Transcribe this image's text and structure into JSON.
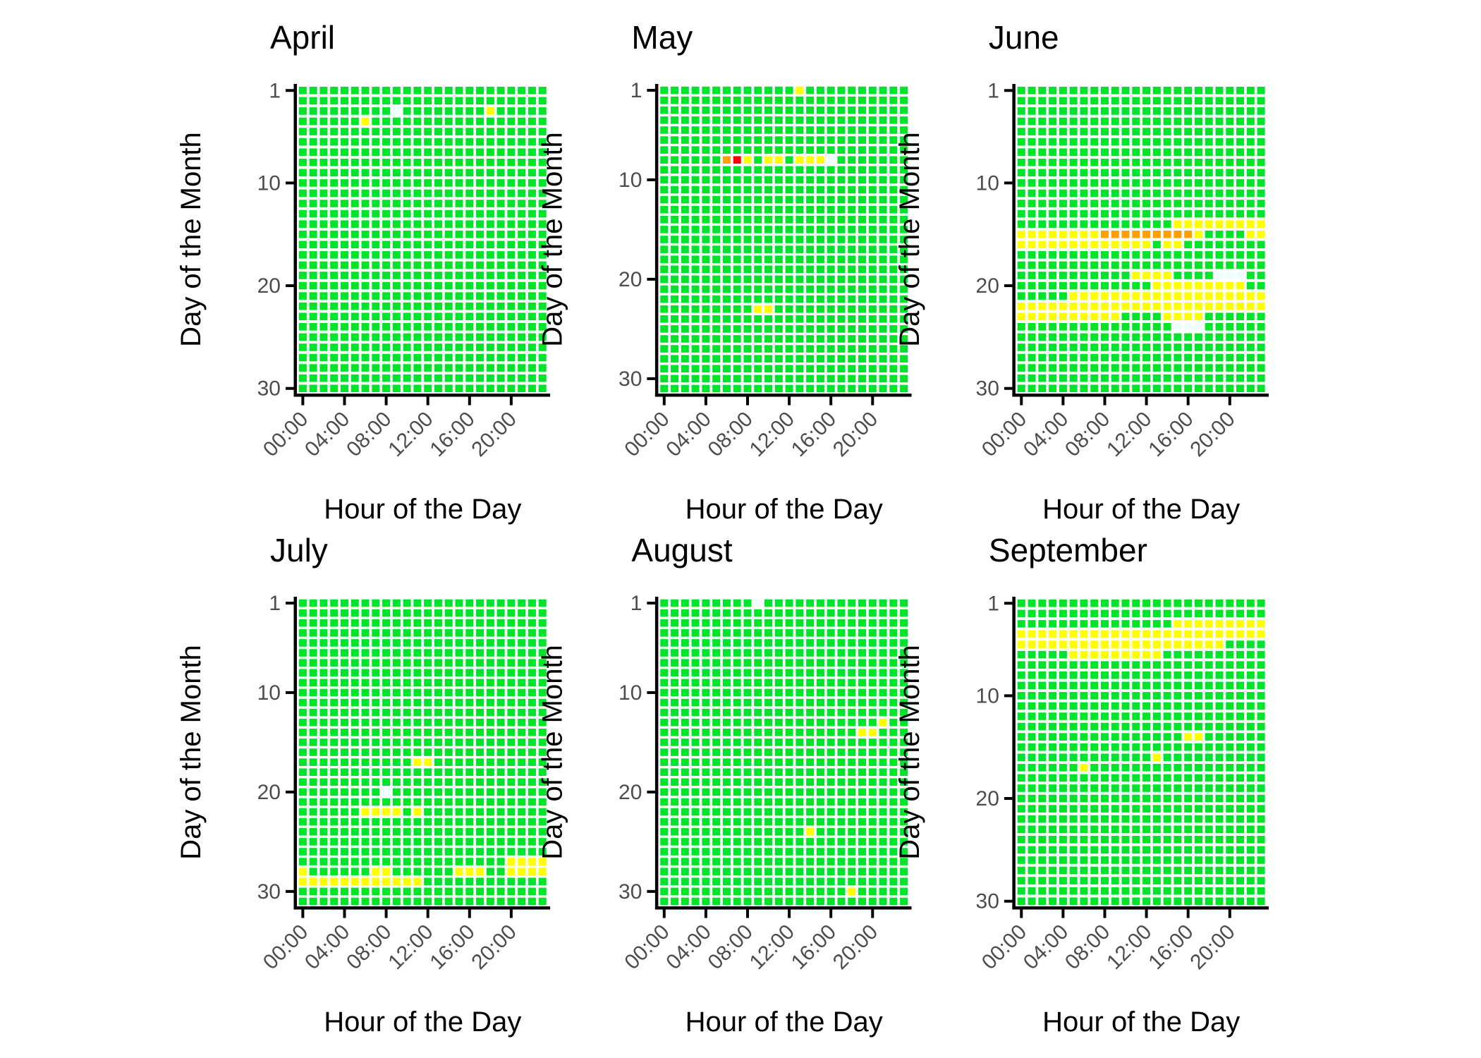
{
  "chart_data": {
    "type": "heatmap",
    "title": "",
    "xlabel": "Hour of the Day",
    "ylabel": "Day of the Month",
    "x_tick_labels": [
      "00:00",
      "04:00",
      "08:00",
      "12:00",
      "16:00",
      "20:00"
    ],
    "x_tick_hours": [
      0,
      4,
      8,
      12,
      16,
      20
    ],
    "y_tick_days": [
      1,
      10,
      20,
      30
    ],
    "hours_per_day": 24,
    "legend": "none",
    "grid": "off",
    "status_colors": {
      "good": "#00e42a",
      "mild": "#ffff00",
      "moderate": "#ffa000",
      "severe": "#ff0000",
      "missing": "#f0fdff"
    },
    "default_status": "good",
    "panels": [
      {
        "month": "April",
        "days": 30,
        "segments": [
          {
            "day": 3,
            "from": 9,
            "to": 9,
            "status": "missing"
          },
          {
            "day": 3,
            "from": 18,
            "to": 18,
            "status": "mild"
          },
          {
            "day": 4,
            "from": 6,
            "to": 6,
            "status": "mild"
          }
        ]
      },
      {
        "month": "May",
        "days": 31,
        "segments": [
          {
            "day": 1,
            "from": 13,
            "to": 13,
            "status": "mild"
          },
          {
            "day": 8,
            "from": 6,
            "to": 6,
            "status": "moderate"
          },
          {
            "day": 8,
            "from": 7,
            "to": 7,
            "status": "severe"
          },
          {
            "day": 8,
            "from": 8,
            "to": 8,
            "status": "mild"
          },
          {
            "day": 8,
            "from": 10,
            "to": 11,
            "status": "mild"
          },
          {
            "day": 8,
            "from": 13,
            "to": 15,
            "status": "mild"
          },
          {
            "day": 8,
            "from": 16,
            "to": 16,
            "status": "missing"
          },
          {
            "day": 23,
            "from": 9,
            "to": 10,
            "status": "mild"
          }
        ]
      },
      {
        "month": "June",
        "days": 30,
        "segments": [
          {
            "day": 14,
            "from": 15,
            "to": 23,
            "status": "mild"
          },
          {
            "day": 15,
            "from": 0,
            "to": 7,
            "status": "mild"
          },
          {
            "day": 15,
            "from": 8,
            "to": 16,
            "status": "moderate"
          },
          {
            "day": 15,
            "from": 17,
            "to": 17,
            "status": "mild"
          },
          {
            "day": 15,
            "from": 22,
            "to": 23,
            "status": "mild"
          },
          {
            "day": 16,
            "from": 0,
            "to": 12,
            "status": "mild"
          },
          {
            "day": 16,
            "from": 14,
            "to": 15,
            "status": "mild"
          },
          {
            "day": 19,
            "from": 11,
            "to": 14,
            "status": "mild"
          },
          {
            "day": 19,
            "from": 19,
            "to": 21,
            "status": "missing"
          },
          {
            "day": 20,
            "from": 13,
            "to": 21,
            "status": "mild"
          },
          {
            "day": 21,
            "from": 5,
            "to": 23,
            "status": "mild"
          },
          {
            "day": 22,
            "from": 0,
            "to": 23,
            "status": "mild"
          },
          {
            "day": 23,
            "from": 0,
            "to": 9,
            "status": "mild"
          },
          {
            "day": 23,
            "from": 14,
            "to": 17,
            "status": "mild"
          },
          {
            "day": 24,
            "from": 15,
            "to": 17,
            "status": "missing"
          }
        ]
      },
      {
        "month": "July",
        "days": 31,
        "segments": [
          {
            "day": 17,
            "from": 11,
            "to": 12,
            "status": "mild"
          },
          {
            "day": 20,
            "from": 8,
            "to": 8,
            "status": "missing"
          },
          {
            "day": 22,
            "from": 6,
            "to": 9,
            "status": "mild"
          },
          {
            "day": 22,
            "from": 11,
            "to": 11,
            "status": "mild"
          },
          {
            "day": 27,
            "from": 20,
            "to": 23,
            "status": "mild"
          },
          {
            "day": 28,
            "from": 0,
            "to": 0,
            "status": "mild"
          },
          {
            "day": 28,
            "from": 7,
            "to": 8,
            "status": "mild"
          },
          {
            "day": 28,
            "from": 15,
            "to": 17,
            "status": "mild"
          },
          {
            "day": 28,
            "from": 20,
            "to": 23,
            "status": "mild"
          },
          {
            "day": 29,
            "from": 0,
            "to": 11,
            "status": "mild"
          }
        ]
      },
      {
        "month": "August",
        "days": 31,
        "segments": [
          {
            "day": 1,
            "from": 9,
            "to": 9,
            "status": "missing"
          },
          {
            "day": 13,
            "from": 21,
            "to": 21,
            "status": "mild"
          },
          {
            "day": 14,
            "from": 19,
            "to": 20,
            "status": "mild"
          },
          {
            "day": 24,
            "from": 14,
            "to": 14,
            "status": "mild"
          },
          {
            "day": 30,
            "from": 18,
            "to": 18,
            "status": "mild"
          }
        ]
      },
      {
        "month": "September",
        "days": 30,
        "segments": [
          {
            "day": 3,
            "from": 15,
            "to": 23,
            "status": "mild"
          },
          {
            "day": 4,
            "from": 0,
            "to": 23,
            "status": "mild"
          },
          {
            "day": 5,
            "from": 0,
            "to": 19,
            "status": "mild"
          },
          {
            "day": 6,
            "from": 5,
            "to": 13,
            "status": "mild"
          },
          {
            "day": 14,
            "from": 16,
            "to": 17,
            "status": "mild"
          },
          {
            "day": 16,
            "from": 13,
            "to": 13,
            "status": "mild"
          },
          {
            "day": 17,
            "from": 6,
            "to": 6,
            "status": "mild"
          }
        ]
      }
    ]
  }
}
